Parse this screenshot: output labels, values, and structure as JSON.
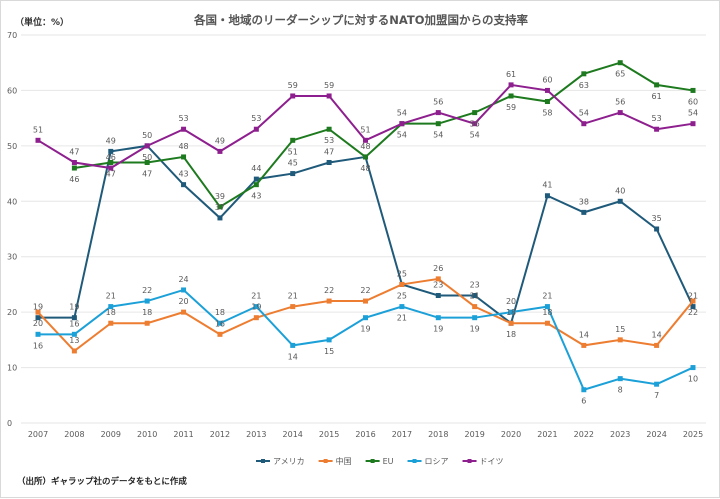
{
  "chart_data": {
    "type": "line",
    "title": "各国・地域のリーダーシップに対するNATO加盟国からの支持率",
    "unit_label": "（単位：%）",
    "source": "（出所）ギャラップ社のデータをもとに作成",
    "categories": [
      "2007",
      "2008",
      "2009",
      "2010",
      "2011",
      "2012",
      "2013",
      "2014",
      "2015",
      "2016",
      "2017",
      "2018",
      "2019",
      "2020",
      "2021",
      "2022",
      "2023",
      "2024",
      "2025"
    ],
    "ylim": [
      0,
      70
    ],
    "yticks": [
      0,
      10,
      20,
      30,
      40,
      50,
      60,
      70
    ],
    "grid": true,
    "legend_position": "bottom",
    "series": [
      {
        "name": "アメリカ",
        "color": "#1f5a7a",
        "values": [
          19,
          19,
          49,
          50,
          43,
          37,
          44,
          45,
          47,
          48,
          25,
          23,
          23,
          18,
          41,
          38,
          40,
          35,
          21
        ]
      },
      {
        "name": "中国",
        "color": "#ed7d31",
        "values": [
          20,
          13,
          18,
          18,
          20,
          16,
          19,
          21,
          22,
          22,
          25,
          26,
          21,
          18,
          18,
          14,
          15,
          14,
          22
        ]
      },
      {
        "name": "EU",
        "color": "#1e7a1e",
        "values": [
          null,
          46,
          47,
          47,
          48,
          39,
          43,
          51,
          53,
          48,
          54,
          54,
          56,
          59,
          58,
          63,
          65,
          61,
          60
        ]
      },
      {
        "name": "ロシア",
        "color": "#1ca0d8",
        "values": [
          16,
          16,
          21,
          22,
          24,
          18,
          21,
          14,
          15,
          19,
          21,
          19,
          19,
          20,
          21,
          6,
          8,
          7,
          10
        ]
      },
      {
        "name": "ドイツ",
        "color": "#8e1f8e",
        "values": [
          51,
          47,
          46,
          50,
          53,
          49,
          53,
          59,
          59,
          51,
          54,
          56,
          54,
          61,
          60,
          54,
          56,
          53,
          54
        ]
      }
    ]
  }
}
